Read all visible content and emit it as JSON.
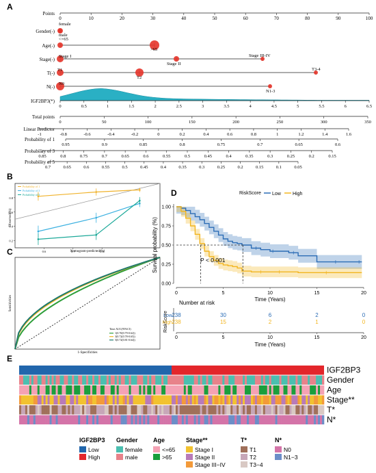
{
  "panels": {
    "A": "A",
    "B": "B",
    "C": "C",
    "D": "D",
    "E": "E"
  },
  "nomogram": {
    "points_label": "Points",
    "points_ticks": [
      "0",
      "10",
      "20",
      "30",
      "40",
      "50",
      "60",
      "70",
      "80",
      "90",
      "100"
    ],
    "rows": [
      {
        "label": "Gender(-)",
        "levels": [
          "female",
          "male"
        ]
      },
      {
        "label": "Age(-)",
        "levels": [
          "<=65",
          ">65"
        ]
      },
      {
        "label": "Stage(-)",
        "levels": [
          "Stage I",
          "Stage II",
          "Stage III-IV"
        ]
      },
      {
        "label": "T(-)",
        "levels": [
          "T1",
          "T2",
          "T3-4"
        ]
      },
      {
        "label": "N(-)",
        "levels": [
          "N0",
          "N1-3"
        ]
      }
    ],
    "igf_label": "IGF2BP3(*)",
    "igf_ticks": [
      "0",
      "0.5",
      "1",
      "1.5",
      "2",
      "2.5",
      "3",
      "3.5",
      "4",
      "4.5",
      "5",
      "5.5",
      "6",
      "6.5"
    ],
    "total_label": "Total points",
    "total_ticks": [
      "0",
      "50",
      "100",
      "150",
      "200",
      "250",
      "300",
      "350"
    ],
    "lp_label": "Linear Predictor",
    "lp_ticks": [
      "-1",
      "-0.8",
      "-0.6",
      "-0.4",
      "-0.2",
      "0",
      "0.2",
      "0.4",
      "0.6",
      "0.8",
      "1",
      "1.2",
      "1.4",
      "1.6"
    ],
    "p1_label": "Probability of 1",
    "p1_ticks": [
      "0.95",
      "0.9",
      "0.85",
      "0.8",
      "0.75",
      "0.7",
      "0.65",
      "0.6"
    ],
    "p3_label": "Probability of 3",
    "p3_ticks": [
      "0.85",
      "0.8",
      "0.75",
      "0.7",
      "0.65",
      "0.6",
      "0.55",
      "0.5",
      "0.45",
      "0.4",
      "0.35",
      "0.3",
      "0.25",
      "0.2",
      "0.15"
    ],
    "p5_label": "Probability of 5",
    "p5_ticks": [
      "0.7",
      "0.65",
      "0.6",
      "0.55",
      "0.5",
      "0.45",
      "0.4",
      "0.35",
      "0.3",
      "0.25",
      "0.2",
      "0.15",
      "0.1",
      "0.05"
    ]
  },
  "calibration": {
    "legend": [
      "Probability of 1",
      "Probability of 3",
      "Probability of 5"
    ],
    "colors": [
      "#f0b22a",
      "#3ab0e0",
      "#1aa898"
    ],
    "ylabel": "Observed(%)",
    "xlabel": "Nomogram-predicted(%)",
    "yticks": [
      "0.2",
      "0.4",
      "0.6",
      "0.8"
    ],
    "xticks": [
      "0.6",
      "0.7",
      "0.8"
    ]
  },
  "roc": {
    "ylabel": "Sensitivities",
    "xlabel": "1-Specificities",
    "legend_title": "Time AUC(95%CI)",
    "legend": [
      "1(0.70(0.79-0.62))",
      "3(0.72(0.78-0.65))",
      "5(0.72(0.81-0.64))"
    ]
  },
  "km": {
    "legend_title": "RiskScore",
    "legend": [
      "Low",
      "High"
    ],
    "colors": {
      "low": "#2b6cb5",
      "high": "#f2b51f"
    },
    "ylabel": "Survival probability (%)",
    "xlabel": "Time (Years)",
    "yticks": [
      "0.00",
      "0.25",
      "0.50",
      "0.75",
      "1.00"
    ],
    "xticks": [
      "0",
      "5",
      "10",
      "15",
      "20"
    ],
    "pvalue": "P < 0.001",
    "risk_title": "Number at risk",
    "risk_ylabel": "RiskScore",
    "risk_rows": [
      {
        "label": "Low",
        "values": [
          "238",
          "30",
          "6",
          "2",
          "0"
        ]
      },
      {
        "label": "High",
        "values": [
          "238",
          "15",
          "2",
          "1",
          "0"
        ]
      }
    ]
  },
  "heatmap": {
    "tracks": [
      "IGF2BP3",
      "Gender",
      "Age",
      "Stage**",
      "T*",
      "N*"
    ],
    "legend_groups": [
      {
        "title": "IGF2BP3",
        "items": [
          {
            "label": "Low",
            "color": "#2166ac"
          },
          {
            "label": "High",
            "color": "#e3262b"
          }
        ]
      },
      {
        "title": "Gender",
        "items": [
          {
            "label": "female",
            "color": "#4bbfb0"
          },
          {
            "label": "male",
            "color": "#e8828a"
          }
        ]
      },
      {
        "title": "Age",
        "items": [
          {
            "label": "<=65",
            "color": "#f4a2b4"
          },
          {
            "label": ">65",
            "color": "#1a9e3c"
          }
        ]
      },
      {
        "title": "Stage**",
        "items": [
          {
            "label": "Stage I",
            "color": "#f2c230"
          },
          {
            "label": "Stage II",
            "color": "#b97bb8"
          },
          {
            "label": "Stage III−IV",
            "color": "#f39a3a"
          }
        ]
      },
      {
        "title": "T*",
        "items": [
          {
            "label": "T1",
            "color": "#a0705a"
          },
          {
            "label": "T2",
            "color": "#c7a7b8"
          },
          {
            "label": "T3−4",
            "color": "#d9c9c4"
          }
        ]
      },
      {
        "title": "N*",
        "items": [
          {
            "label": "N0",
            "color": "#d474a8"
          },
          {
            "label": "N1−3",
            "color": "#6c8ec8"
          }
        ]
      }
    ]
  }
}
